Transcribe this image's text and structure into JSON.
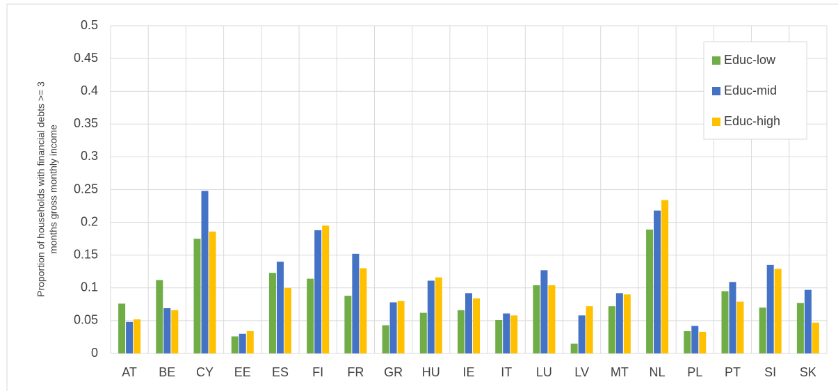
{
  "chart_data": {
    "type": "bar",
    "ylabel": [
      "Proportion of households with financial debts >= 3",
      "months gross monthly income"
    ],
    "categories": [
      "AT",
      "BE",
      "CY",
      "EE",
      "ES",
      "FI",
      "FR",
      "GR",
      "HU",
      "IE",
      "IT",
      "LU",
      "LV",
      "MT",
      "NL",
      "PL",
      "PT",
      "SI",
      "SK"
    ],
    "series": [
      {
        "name": "Educ-low",
        "color": "#70ad47",
        "values": [
          0.076,
          0.112,
          0.175,
          0.026,
          0.123,
          0.114,
          0.088,
          0.043,
          0.062,
          0.066,
          0.051,
          0.104,
          0.015,
          0.072,
          0.189,
          0.034,
          0.095,
          0.07,
          0.077
        ]
      },
      {
        "name": "Educ-mid",
        "color": "#4472c4",
        "values": [
          0.048,
          0.069,
          0.248,
          0.03,
          0.14,
          0.188,
          0.152,
          0.078,
          0.111,
          0.092,
          0.061,
          0.127,
          0.058,
          0.092,
          0.218,
          0.042,
          0.109,
          0.135,
          0.097
        ]
      },
      {
        "name": "Educ-high",
        "color": "#ffc000",
        "values": [
          0.052,
          0.066,
          0.186,
          0.034,
          0.1,
          0.195,
          0.13,
          0.08,
          0.116,
          0.084,
          0.058,
          0.104,
          0.072,
          0.09,
          0.234,
          0.033,
          0.079,
          0.129,
          0.047
        ]
      }
    ],
    "ylim": [
      0,
      0.5
    ],
    "yticks": [
      0,
      0.05,
      0.1,
      0.15,
      0.2,
      0.25,
      0.3,
      0.35,
      0.4,
      0.45,
      0.5
    ],
    "grid": true,
    "legend": "upper right"
  }
}
